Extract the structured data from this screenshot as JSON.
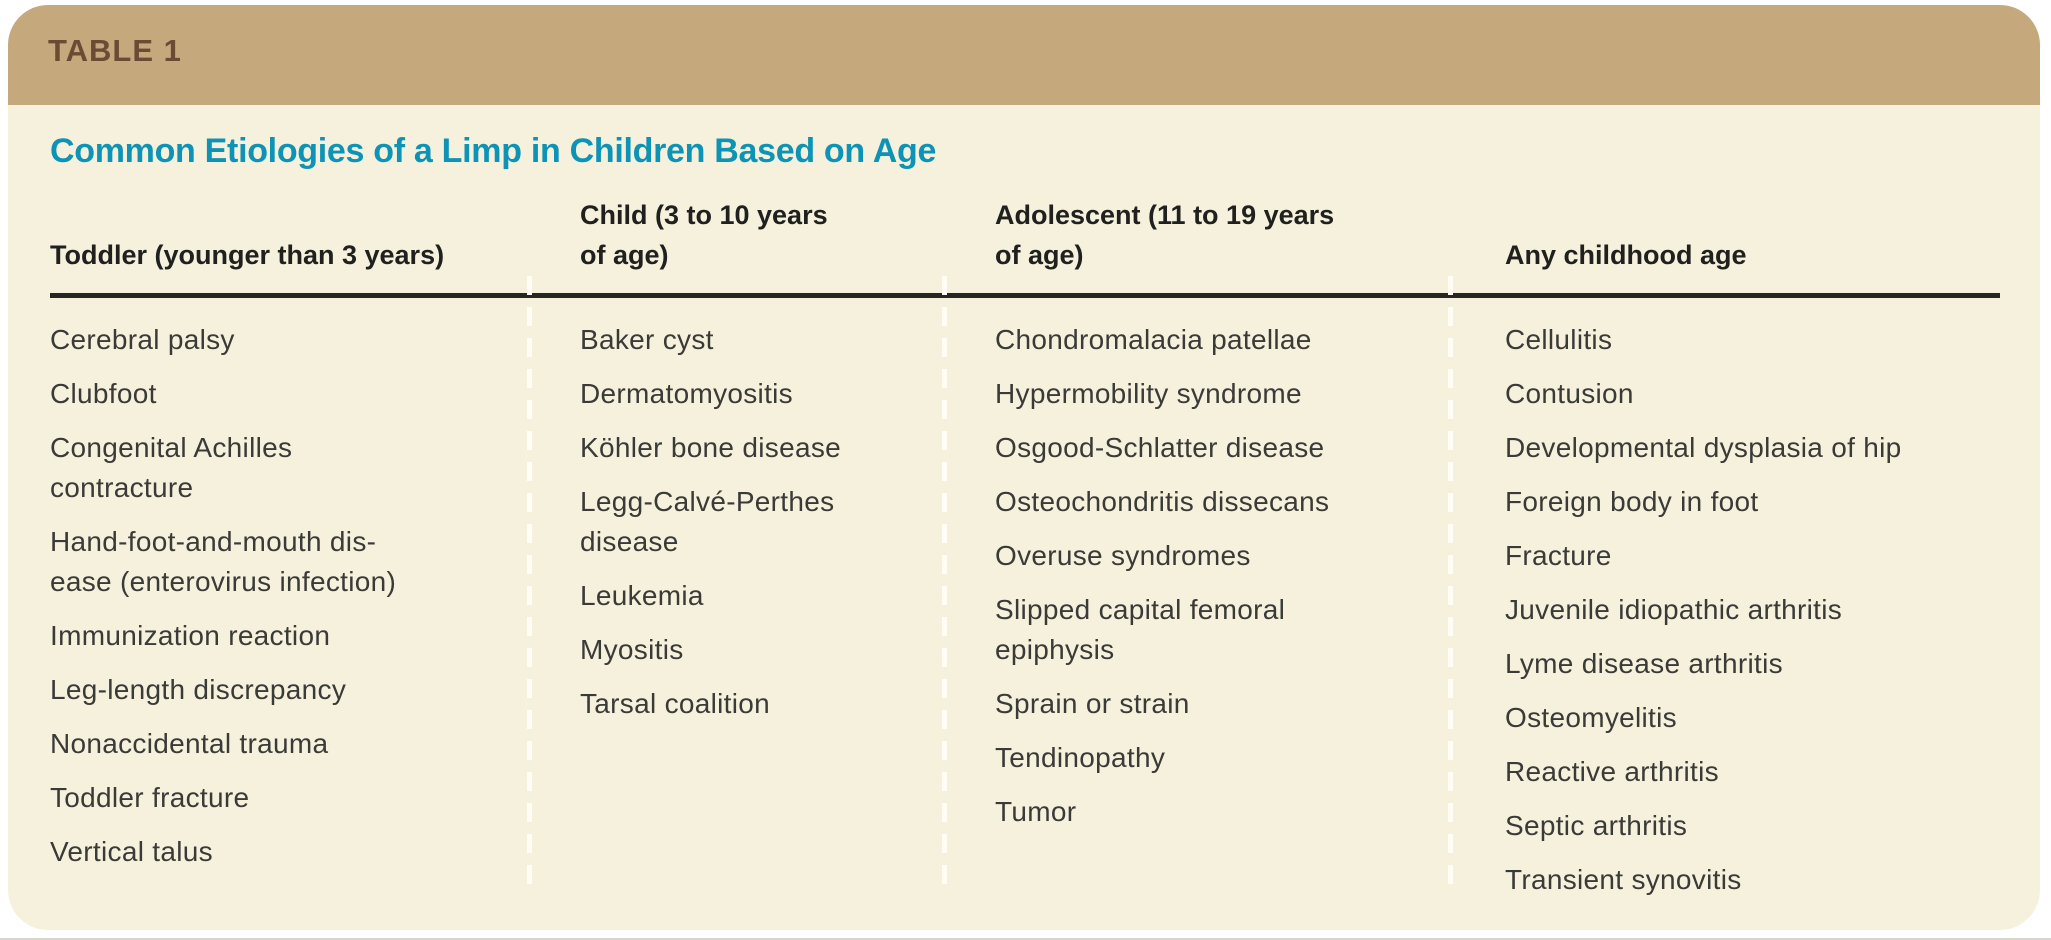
{
  "table_label": "TABLE 1",
  "title": "Common Etiologies of a Limp in Children Based on Age",
  "columns": [
    {
      "header": "Toddler (younger than 3 years)",
      "items": [
        "Cerebral palsy",
        "Clubfoot",
        "Congenital Achilles\ncontracture",
        "Hand-foot-and-mouth dis-\nease (enterovirus infection)",
        "Immunization reaction",
        "Leg-length discrepancy",
        "Nonaccidental trauma",
        "Toddler fracture",
        "Vertical talus"
      ]
    },
    {
      "header": "Child (3 to 10 years\nof age)",
      "items": [
        "Baker cyst",
        "Dermatomyositis",
        "Köhler bone disease",
        "Legg-Calvé-Perthes\ndisease",
        "Leukemia",
        "Myositis",
        "Tarsal coalition"
      ]
    },
    {
      "header": "Adolescent (11 to 19 years\nof age)",
      "items": [
        "Chondromalacia patellae",
        "Hypermobility syndrome",
        "Osgood-Schlatter disease",
        "Osteochondritis dissecans",
        "Overuse syndromes",
        "Slipped capital femoral\nepiphysis",
        "Sprain or strain",
        "Tendinopathy",
        "Tumor"
      ]
    },
    {
      "header": "Any childhood age",
      "items": [
        "Cellulitis",
        "Contusion",
        "Developmental dysplasia of hip",
        "Foreign body in foot",
        "Fracture",
        "Juvenile idiopathic arthritis",
        "Lyme disease arthritis",
        "Osteomyelitis",
        "Reactive arthritis",
        "Septic arthritis",
        "Transient synovitis"
      ]
    }
  ],
  "colors": {
    "band_background": "#c5a87c",
    "table_label_text": "#6c4b35",
    "panel_background": "#f6f1dd",
    "title_text": "#0d93b6",
    "header_rule": "#262622",
    "header_text": "#20201e",
    "body_text": "#3a3a37",
    "column_divider": "#fffdf4"
  }
}
